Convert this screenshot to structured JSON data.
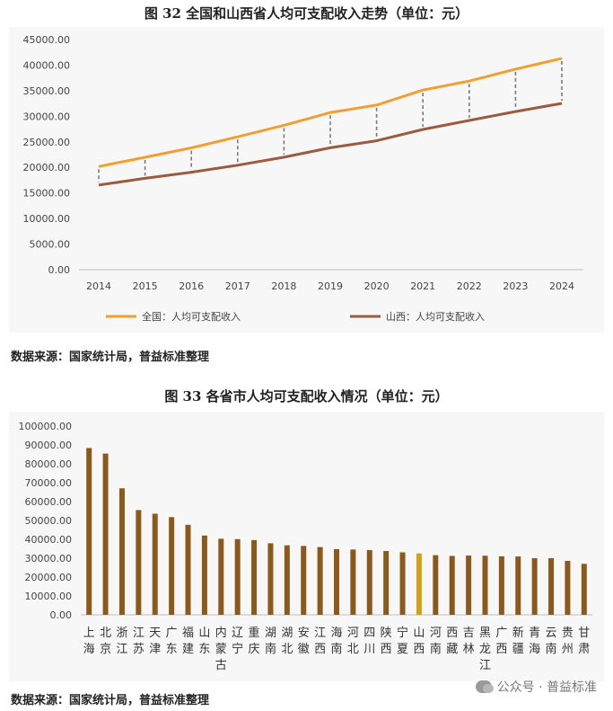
{
  "charts": {
    "chart1": {
      "title": "图 32 全国和山西省人均可支配收入走势（单位：元）",
      "source": "数据来源：国家统计局，普益标准整理"
    },
    "chart2": {
      "title": "图 33 各省市人均可支配收入情况（单位：元）",
      "source": "数据来源：国家统计局，普益标准整理"
    }
  },
  "watermark": "公众号 · 普益标准",
  "chart_data": [
    {
      "type": "line",
      "title": "图 32 全国和山西省人均可支配收入走势（单位：元）",
      "x": [
        "2014",
        "2015",
        "2016",
        "2017",
        "2018",
        "2019",
        "2020",
        "2021",
        "2022",
        "2023",
        "2024"
      ],
      "series": [
        {
          "name": "全国：人均可支配收入",
          "color": "#f0a030",
          "values": [
            20167,
            21966,
            23821,
            25974,
            28228,
            30733,
            32189,
            35128,
            36883,
            39218,
            41314
          ]
        },
        {
          "name": "山西：人均可支配收入",
          "color": "#9b5b3e",
          "values": [
            16538,
            17854,
            19049,
            20420,
            21990,
            23828,
            25214,
            27426,
            29178,
            30924,
            32514
          ]
        }
      ],
      "yticks": [
        "0.00",
        "5000.00",
        "10000.00",
        "15000.00",
        "20000.00",
        "25000.00",
        "30000.00",
        "35000.00",
        "40000.00",
        "45000.00"
      ],
      "ylim": [
        0,
        45000
      ],
      "grid": false,
      "legend": "bottom",
      "connectors": "dashed vertical lines between series"
    },
    {
      "type": "bar",
      "title": "图 33 各省市人均可支配收入情况（单位：元）",
      "categories": [
        "上海",
        "北京",
        "浙江",
        "江苏",
        "天津",
        "广东",
        "福建",
        "山东",
        "内蒙古",
        "辽宁",
        "重庆",
        "湖南",
        "湖北",
        "安徽",
        "江西",
        "海南",
        "河北",
        "四川",
        "陕西",
        "宁夏",
        "山西",
        "河南",
        "西藏",
        "吉林",
        "黑龙江",
        "广西",
        "新疆",
        "青海",
        "云南",
        "贵州",
        "甘肃"
      ],
      "values": [
        88366,
        85415,
        67013,
        55500,
        53581,
        51749,
        47700,
        42000,
        40300,
        40100,
        39600,
        37900,
        36800,
        36500,
        35900,
        34800,
        34600,
        34300,
        33800,
        33100,
        32514,
        31600,
        31200,
        31400,
        31300,
        31000,
        30900,
        30000,
        30000,
        28600,
        27000
      ],
      "bar_color": "#8b5a1b",
      "highlight": {
        "category": "山西",
        "color": "#d4a017"
      },
      "yticks": [
        "0.00",
        "10000.00",
        "20000.00",
        "30000.00",
        "40000.00",
        "50000.00",
        "60000.00",
        "70000.00",
        "80000.00",
        "90000.00",
        "100000.00"
      ],
      "ylim": [
        0,
        100000
      ],
      "grid": false
    }
  ]
}
